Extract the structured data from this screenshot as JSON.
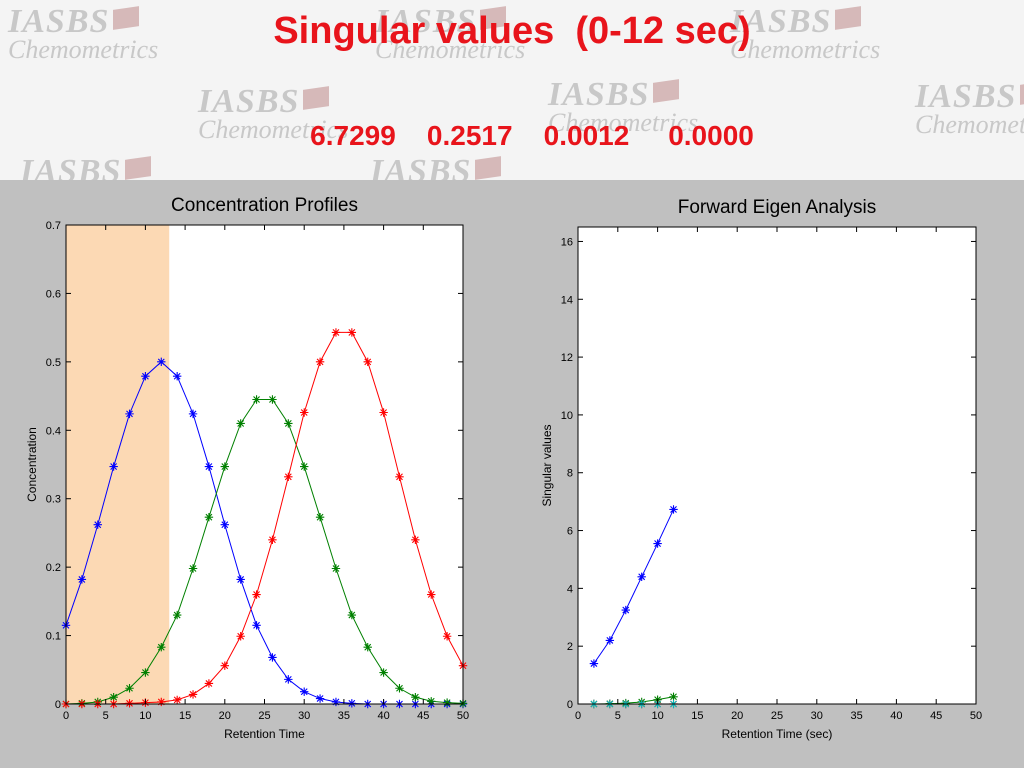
{
  "header": {
    "title": "Singular values  (0-12 sec)",
    "values_line": "6.7299    0.2517    0.0012     0.0000",
    "watermark": {
      "line1": "IASBS",
      "line2": "Chemometrics"
    }
  },
  "chart_data": [
    {
      "type": "line",
      "title": "Concentration Profiles",
      "xlabel": "Retention Time",
      "ylabel": "Concentration",
      "xlim": [
        0,
        50
      ],
      "ylim": [
        0,
        0.7
      ],
      "xticks": [
        0,
        5,
        10,
        15,
        20,
        25,
        30,
        35,
        40,
        45,
        50
      ],
      "yticks": [
        0,
        0.1,
        0.2,
        0.3,
        0.4,
        0.5,
        0.6,
        0.7
      ],
      "highlight_region": {
        "x": [
          0,
          13
        ],
        "color": "#fcd9b4"
      },
      "x": [
        0,
        2,
        4,
        6,
        8,
        10,
        12,
        14,
        16,
        18,
        20,
        22,
        24,
        26,
        28,
        30,
        32,
        34,
        36,
        38,
        40,
        42,
        44,
        46,
        48,
        50
      ],
      "series": [
        {
          "color": "#0000ff",
          "marker": "*",
          "values": [
            0.115,
            0.182,
            0.262,
            0.347,
            0.424,
            0.479,
            0.5,
            0.479,
            0.424,
            0.347,
            0.262,
            0.182,
            0.115,
            0.068,
            0.036,
            0.018,
            0.008,
            0.003,
            0.001,
            0.0,
            0.0,
            0.0,
            0.0,
            0.0,
            0.0,
            0.0
          ]
        },
        {
          "color": "#008000",
          "marker": "*",
          "values": [
            0.0,
            0.001,
            0.003,
            0.01,
            0.023,
            0.046,
            0.083,
            0.13,
            0.198,
            0.273,
            0.347,
            0.41,
            0.445,
            0.445,
            0.41,
            0.347,
            0.273,
            0.198,
            0.13,
            0.083,
            0.046,
            0.023,
            0.01,
            0.004,
            0.002,
            0.001
          ]
        },
        {
          "color": "#ff0000",
          "marker": "*",
          "values": [
            0.0,
            0.0,
            0.0,
            0.0,
            0.001,
            0.002,
            0.003,
            0.006,
            0.014,
            0.03,
            0.056,
            0.099,
            0.16,
            0.24,
            0.332,
            0.426,
            0.5,
            0.543,
            0.543,
            0.5,
            0.426,
            0.332,
            0.24,
            0.16,
            0.099,
            0.056
          ]
        }
      ]
    },
    {
      "type": "line",
      "title": "Forward Eigen Analysis",
      "xlabel": "Retention Time (sec)",
      "ylabel": "Singular values",
      "xlim": [
        0,
        50
      ],
      "ylim": [
        0,
        16.5
      ],
      "xticks": [
        0,
        5,
        10,
        15,
        20,
        25,
        30,
        35,
        40,
        45,
        50
      ],
      "yticks": [
        0,
        2,
        4,
        6,
        8,
        10,
        12,
        14,
        16
      ],
      "x": [
        2,
        4,
        6,
        8,
        10,
        12
      ],
      "series": [
        {
          "color": "#0000ff",
          "marker": "*",
          "values": [
            1.4,
            2.2,
            3.25,
            4.4,
            5.55,
            6.73
          ]
        },
        {
          "color": "#008000",
          "marker": "*",
          "values": [
            0.0,
            0.01,
            0.03,
            0.07,
            0.15,
            0.25
          ]
        },
        {
          "color": "#ff0000",
          "marker": "*",
          "values": [
            0.0,
            0.0,
            0.0,
            0.0,
            0.001,
            0.001
          ]
        },
        {
          "color": "#00bfbf",
          "marker": "*",
          "values": [
            0.0,
            0.0,
            0.0,
            0.0,
            0.0,
            0.0
          ]
        }
      ]
    }
  ]
}
